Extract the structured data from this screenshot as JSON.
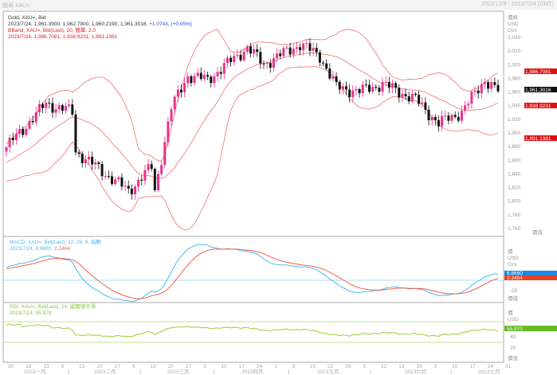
{
  "header": {
    "title": "圖表 XAU=",
    "range": "2022/12/9 - 2023/7/24 (GMT)"
  },
  "main_legend": {
    "line1": "Gold, XAU=, Bid",
    "line2": "2023/7/24, 1,961.3900, 1,962.7900, 1,960.2190, 1,961.3016, ",
    "change": "+1.0743, (+0.05%)",
    "line3": "BBand, XAU=, Bid(Last), 20, 簡單, 2.0",
    "line4": "2023/7/24, 1,986.7081, 1,938.9231, 1,891.1381"
  },
  "macd_legend": {
    "line1": "MACD, XAU=, Bid(Last), 12, 26, 9, 指數",
    "line2a": "2023/7/24, 6.8660, ",
    "line2b": "2.2464"
  },
  "rsi_legend": {
    "line1": "RSI, XAU=, Bid(Last), 14, 威爾德平滑",
    "line2": "2023/7/24, 55.970"
  },
  "axis_labels": {
    "price_header": "價格",
    "unit": "USD",
    "unit2": "Ozs",
    "macd_header": "價",
    "rsi_header": "價",
    "price_footer": "價值",
    "macd_footer": "價值",
    "rsi_footer": "價值"
  },
  "badges": {
    "bb_upper": "1,986.7081",
    "last": "1,961.3016",
    "bb_mid": "1,938.9231",
    "bb_lower": "1,891.1381",
    "macd": "6.8660",
    "signal": "2.2464",
    "rsi": "55.970"
  },
  "colors": {
    "up": "#e8338a",
    "down": "#111111",
    "bband": "#f08080",
    "macd": "#4db8f0",
    "signal": "#f0604a",
    "rsi": "#9acd32"
  },
  "chart_data": {
    "type": "candlestick",
    "price_ticks": [
      2040,
      2020,
      2000,
      1980,
      1960,
      1940,
      1920,
      1900,
      1880,
      1860,
      1840,
      1820,
      1800,
      1780,
      1760
    ],
    "ylim": [
      1755,
      2055
    ],
    "close_anchors": [
      [
        -25,
        1820
      ],
      [
        0,
        1879
      ],
      [
        12,
        1943
      ],
      [
        20,
        1931
      ],
      [
        21,
        1873
      ],
      [
        37,
        1815
      ],
      [
        44,
        1850
      ],
      [
        45,
        1815
      ],
      [
        50,
        1937
      ],
      [
        55,
        1984
      ],
      [
        61,
        1978
      ],
      [
        73,
        2025
      ],
      [
        78,
        2001
      ],
      [
        89,
        2030
      ],
      [
        95,
        2013
      ],
      [
        100,
        1967
      ],
      [
        107,
        1961
      ],
      [
        114,
        1972
      ],
      [
        124,
        1949
      ],
      [
        131,
        1914
      ],
      [
        138,
        1931
      ],
      [
        145,
        1978
      ],
      [
        149,
        1961
      ]
    ],
    "candles": 150,
    "bollinger": {
      "period": 20,
      "stddev": 2
    },
    "macd": {
      "fast": 12,
      "slow": 26,
      "signal": 9,
      "ticks": [
        "-20"
      ]
    },
    "rsi": {
      "period": 14,
      "levels": [
        70,
        30
      ],
      "ticks": [
        "40",
        "20"
      ]
    },
    "date_ticks": [
      "30",
      "16",
      "23",
      "6",
      "13",
      "20",
      "27",
      "6",
      "13",
      "20",
      "27",
      "3",
      "10",
      "17",
      "24",
      "1",
      "8",
      "15",
      "22",
      "29",
      "5",
      "12",
      "19",
      "26",
      "3",
      "10",
      "17",
      "24",
      "31"
    ],
    "months": [
      "2023一月",
      "2023二月",
      "2023三月",
      "2023四月",
      "2023五月",
      "2023六月",
      "2023七月"
    ]
  }
}
